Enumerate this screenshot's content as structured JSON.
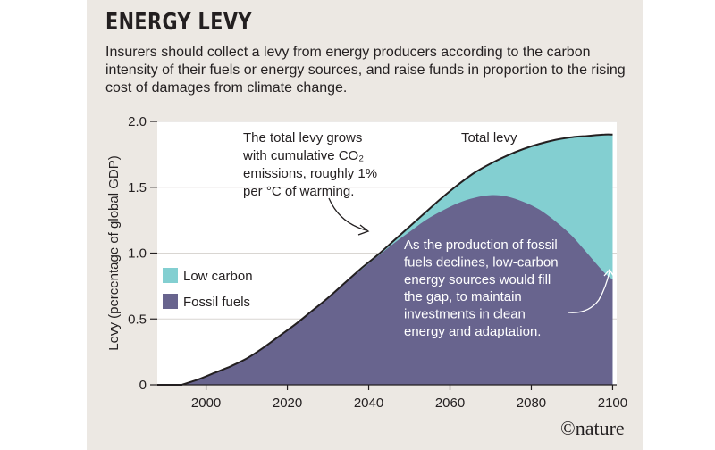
{
  "header": {
    "title": "ENERGY LEVY",
    "subtitle": "Insurers should collect a levy from energy producers according to the carbon intensity of their fuels or energy sources, and raise funds in proportion to the rising cost of damages from climate change."
  },
  "footer": {
    "copyright": "©nature"
  },
  "colors": {
    "fossil": "#68648e",
    "low_carbon": "#83cfd1",
    "panel": "#ece8e3",
    "plot": "#ffffff",
    "line": "#231f20"
  },
  "chart_data": {
    "type": "area",
    "title": "ENERGY LEVY",
    "xlabel": "",
    "ylabel": "Levy (percentage of global GDP)",
    "xlim": [
      1988,
      2101
    ],
    "ylim": [
      0,
      2.0
    ],
    "xticks": [
      2000,
      2020,
      2040,
      2060,
      2080,
      2100
    ],
    "yticks": [
      0,
      0.5,
      1.0,
      1.5,
      2.0
    ],
    "ytick_labels": [
      "0",
      "0.5",
      "1.0",
      "1.5",
      "2.0"
    ],
    "grid": true,
    "legend": {
      "placement": "middle-left",
      "entries": [
        {
          "label": "Low carbon",
          "color": "#83cfd1"
        },
        {
          "label": "Fossil fuels",
          "color": "#68648e"
        }
      ]
    },
    "x": [
      1994,
      1998,
      2002,
      2006,
      2010,
      2014,
      2018,
      2022,
      2026,
      2030,
      2034,
      2038,
      2042,
      2046,
      2050,
      2054,
      2058,
      2062,
      2066,
      2070,
      2074,
      2078,
      2082,
      2086,
      2090,
      2094,
      2098,
      2100
    ],
    "series": [
      {
        "name": "Total levy",
        "values": [
          0,
          0.04,
          0.09,
          0.14,
          0.2,
          0.28,
          0.37,
          0.46,
          0.56,
          0.66,
          0.77,
          0.88,
          0.98,
          1.09,
          1.2,
          1.31,
          1.42,
          1.52,
          1.61,
          1.68,
          1.74,
          1.79,
          1.83,
          1.86,
          1.88,
          1.89,
          1.9,
          1.9
        ]
      },
      {
        "name": "Fossil fuels",
        "values": [
          0,
          0.04,
          0.09,
          0.14,
          0.2,
          0.28,
          0.37,
          0.46,
          0.56,
          0.66,
          0.77,
          0.87,
          0.97,
          1.07,
          1.16,
          1.25,
          1.32,
          1.38,
          1.42,
          1.44,
          1.43,
          1.39,
          1.33,
          1.24,
          1.13,
          0.99,
          0.85,
          0.8
        ]
      }
    ],
    "annotations": [
      {
        "text": [
          "The total levy grows",
          "with cumulative CO₂",
          "emissions, roughly 1%",
          "per °C of warming."
        ]
      },
      {
        "text": [
          "Total levy"
        ]
      },
      {
        "text": [
          "As the production of fossil",
          "fuels declines, low-carbon",
          "energy sources would fill",
          "the gap, to maintain",
          "investments in clean",
          "energy and adaptation."
        ]
      }
    ]
  }
}
